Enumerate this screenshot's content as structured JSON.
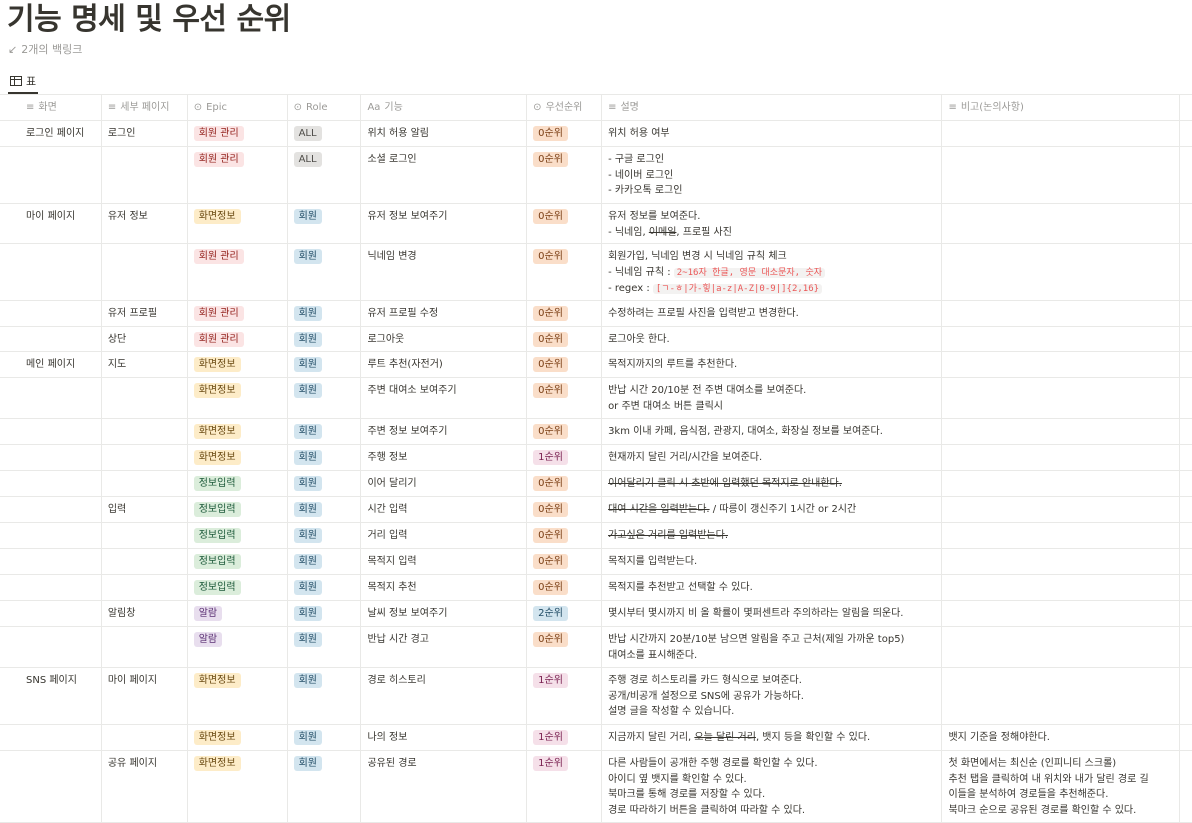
{
  "page": {
    "title": "기능 명세 및 우선 순위",
    "backlinks": "2개의 백링크",
    "view_tab": "표"
  },
  "headers": {
    "screen": "화면",
    "subpage": "세부 페이지",
    "epic": "Epic",
    "role": "Role",
    "feature": "기능",
    "priority": "우선순위",
    "description": "설명",
    "notes": "비고(논의사항)"
  },
  "icons": {
    "table": "table-icon",
    "text": "text-lines-icon",
    "select": "select-icon",
    "title": "title-aa-icon",
    "backlink": "arrow-icon"
  },
  "colors": {
    "epic_회원관리": "#fbe4e4",
    "epic_화면정보": "#fdecc8",
    "epic_정보입력": "#dbeddb",
    "epic_알람": "#e8deee",
    "role_ALL": "#e3e2e0",
    "role_회원": "#d3e5ef",
    "priority_0": "#fadec9",
    "priority_1": "#f5e0e9",
    "priority_2": "#d3e5ef"
  },
  "rows": [
    {
      "screen": "로그인 페이지",
      "subpage": "로그인",
      "epic": "회원 관리",
      "role": "ALL",
      "feature": "위치 허용 알림",
      "priority": "0순위",
      "description": [
        "위치 허용 여부"
      ],
      "notes": []
    },
    {
      "screen": "",
      "subpage": "",
      "epic": "회원 관리",
      "role": "ALL",
      "feature": "소셜 로그인",
      "priority": "0순위",
      "description": [
        "- 구글 로그인",
        "- 네이버 로그인",
        "- 카카오톡 로그인"
      ],
      "notes": []
    },
    {
      "screen": "마이 페이지",
      "subpage": "유저 정보",
      "epic": "화면정보",
      "role": "회원",
      "feature": "유저 정보 보여주기",
      "priority": "0순위",
      "description": [
        "유저 정보를 보여준다.",
        "- 닉네임, 이메일, 프로필 사진"
      ],
      "notes": []
    },
    {
      "screen": "",
      "subpage": "",
      "epic": "회원 관리",
      "role": "회원",
      "feature": "닉네임 변경",
      "priority": "0순위",
      "description": [
        "회원가입, 닉네임 변경 시 닉네임 규칙 체크",
        "- 닉네임 규칙 : 2~16자 한글, 영문 대소문자, 숫자",
        "- regex : [ㄱ-ㅎ|가-힣|a-z|A-Z|0-9|]{2,16}"
      ],
      "notes": []
    },
    {
      "screen": "",
      "subpage": "유저 프로필",
      "epic": "회원 관리",
      "role": "회원",
      "feature": "유저 프로필 수정",
      "priority": "0순위",
      "description": [
        "수정하려는 프로필 사진을 입력받고 변경한다."
      ],
      "notes": []
    },
    {
      "screen": "",
      "subpage": "상단",
      "epic": "회원 관리",
      "role": "회원",
      "feature": "로그아웃",
      "priority": "0순위",
      "description": [
        "로그아웃 한다."
      ],
      "notes": []
    },
    {
      "screen": "메인 페이지",
      "subpage": "지도",
      "epic": "화면정보",
      "role": "회원",
      "feature": "루트 추천(자전거)",
      "priority": "0순위",
      "description": [
        "목적지까지의 루트를 추천한다."
      ],
      "notes": []
    },
    {
      "screen": "",
      "subpage": "",
      "epic": "화면정보",
      "role": "회원",
      "feature": "주변 대여소 보여주기",
      "priority": "0순위",
      "description": [
        "반납 시간 20/10분 전 주변 대여소를 보여준다.",
        "or 주변 대여소 버튼 클릭시"
      ],
      "notes": []
    },
    {
      "screen": "",
      "subpage": "",
      "epic": "화면정보",
      "role": "회원",
      "feature": "주변 정보 보여주기",
      "priority": "0순위",
      "description": [
        "3km 이내 카페, 음식점, 관광지, 대여소, 화장실 정보를 보여준다."
      ],
      "notes": []
    },
    {
      "screen": "",
      "subpage": "",
      "epic": "화면정보",
      "role": "회원",
      "feature": "주행 정보",
      "priority": "1순위",
      "description": [
        "현재까지 달린 거리/시간을 보여준다."
      ],
      "notes": []
    },
    {
      "screen": "",
      "subpage": "",
      "epic": "정보입력",
      "role": "회원",
      "feature": "이어 달리기",
      "priority": "0순위",
      "description": [
        "이어달리기 클릭 시 초반에 입력했던 목적지로 안내한다."
      ],
      "notes": []
    },
    {
      "screen": "",
      "subpage": "입력",
      "epic": "정보입력",
      "role": "회원",
      "feature": "시간 입력",
      "priority": "0순위",
      "description": [
        "대여 시간을 입력받는다. / 따릉이 갱신주기 1시간 or 2시간"
      ],
      "notes": []
    },
    {
      "screen": "",
      "subpage": "",
      "epic": "정보입력",
      "role": "회원",
      "feature": "거리 입력",
      "priority": "0순위",
      "description": [
        "가고싶은 거리를 입력받는다."
      ],
      "notes": []
    },
    {
      "screen": "",
      "subpage": "",
      "epic": "정보입력",
      "role": "회원",
      "feature": "목적지 입력",
      "priority": "0순위",
      "description": [
        "목적지를 입력받는다."
      ],
      "notes": []
    },
    {
      "screen": "",
      "subpage": "",
      "epic": "정보입력",
      "role": "회원",
      "feature": "목적지 추천",
      "priority": "0순위",
      "description": [
        "목적지를 추천받고 선택할 수 있다."
      ],
      "notes": []
    },
    {
      "screen": "",
      "subpage": "알림창",
      "epic": "알람",
      "role": "회원",
      "feature": "날씨 정보 보여주기",
      "priority": "2순위",
      "description": [
        "몇시부터 몇시까지 비 올 확률이 몇퍼센트라 주의하라는 알림을 띄운다."
      ],
      "notes": []
    },
    {
      "screen": "",
      "subpage": "",
      "epic": "알람",
      "role": "회원",
      "feature": "반납 시간 경고",
      "priority": "0순위",
      "description": [
        "반납 시간까지 20분/10분 남으면 알림을 주고 근처(제일 가까운 top5)",
        "대여소를 표시해준다."
      ],
      "notes": []
    },
    {
      "screen": "SNS 페이지",
      "subpage": "마이 페이지",
      "epic": "화면정보",
      "role": "회원",
      "feature": "경로 히스토리",
      "priority": "1순위",
      "description": [
        "주행 경로 히스토리를 카드 형식으로 보여준다.",
        "공개/비공개 설정으로 SNS에 공유가 가능하다.",
        "설명 글을 작성할 수 있습니다."
      ],
      "notes": []
    },
    {
      "screen": "",
      "subpage": "",
      "epic": "화면정보",
      "role": "회원",
      "feature": "나의 정보",
      "priority": "1순위",
      "description": [
        "지금까지 달린 거리, 오늘 달린 거리, 뱃지 등을 확인할 수 있다."
      ],
      "notes": [
        "뱃지 기준을 정해야한다."
      ]
    },
    {
      "screen": "",
      "subpage": "공유 페이지",
      "epic": "화면정보",
      "role": "회원",
      "feature": "공유된 경로",
      "priority": "1순위",
      "description": [
        "다른 사람들이 공개한 주행 경로를 확인할 수 있다.",
        "아이디 옆 뱃지를 확인할 수 있다.",
        "북마크를 통해 경로를 저장할 수 있다.",
        "경로 따라하기 버튼을 클릭하여 따라할 수 있다."
      ],
      "notes": [
        "첫 화면에서는 최신순 (인피니티 스크롤)",
        "추천 탭을 클릭하여 내 위치와 내가 달린 경로 길",
        "이들을 분석하여 경로들을 추천해준다.",
        "북마크 순으로 공유된 경로를 확인할 수 있다."
      ]
    }
  ]
}
